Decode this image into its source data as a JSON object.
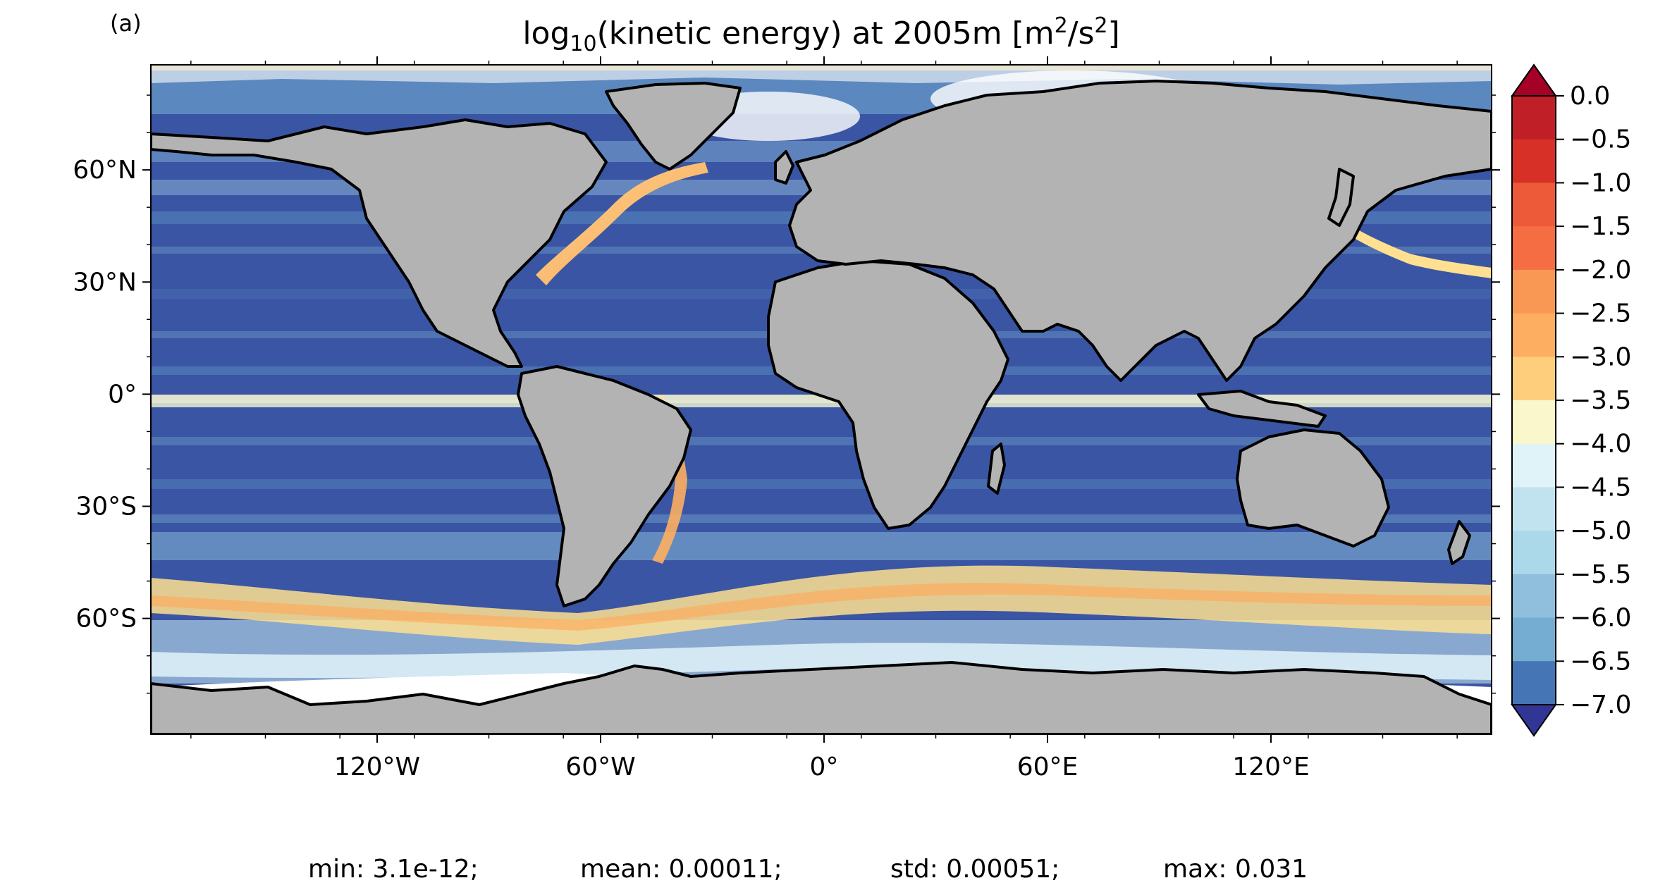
{
  "panel_label": "(a)",
  "title": {
    "prefix": "log",
    "subscript": "10",
    "middle": "(kinetic energy) at 2005m [m",
    "sup1": "2",
    "slash": "/s",
    "sup2": "2",
    "suffix": "]"
  },
  "axes": {
    "lat_ticks": [
      "60°N",
      "30°N",
      "0°",
      "30°S",
      "60°S"
    ],
    "lon_ticks": [
      "120°W",
      "60°W",
      "0°",
      "60°E",
      "120°E"
    ]
  },
  "colorbar": {
    "tick_labels": [
      "0.0",
      "−0.5",
      "−1.0",
      "−1.5",
      "−2.0",
      "−2.5",
      "−3.0",
      "−3.5",
      "−4.0",
      "−4.5",
      "−5.0",
      "−5.5",
      "−6.0",
      "−6.5",
      "−7.0"
    ],
    "extend": "both",
    "colors": [
      "#a50026",
      "#c11f28",
      "#d73027",
      "#ec5a39",
      "#f46d43",
      "#f99855",
      "#fdae61",
      "#fece7d",
      "#fee090",
      "#fbf7cc",
      "#e0f3f8",
      "#c1e3ef",
      "#abd9e9",
      "#8fbfdd",
      "#74add1",
      "#5b8cc2",
      "#4575b4",
      "#3b57a5",
      "#313695"
    ]
  },
  "stats": {
    "min": "min: 3.1e-12;",
    "mean": "mean: 0.00011;",
    "std": "std: 0.00051;",
    "max": "max: 0.031"
  },
  "map_colors": {
    "land": "#b3b3b3",
    "ocean_deep": "#3a55a3",
    "ocean_mid": "#6f9ccb",
    "ocean_light": "#c9e4ef",
    "jet_warm": "#fdd58a",
    "jet_hot": "#f9a35b"
  }
}
